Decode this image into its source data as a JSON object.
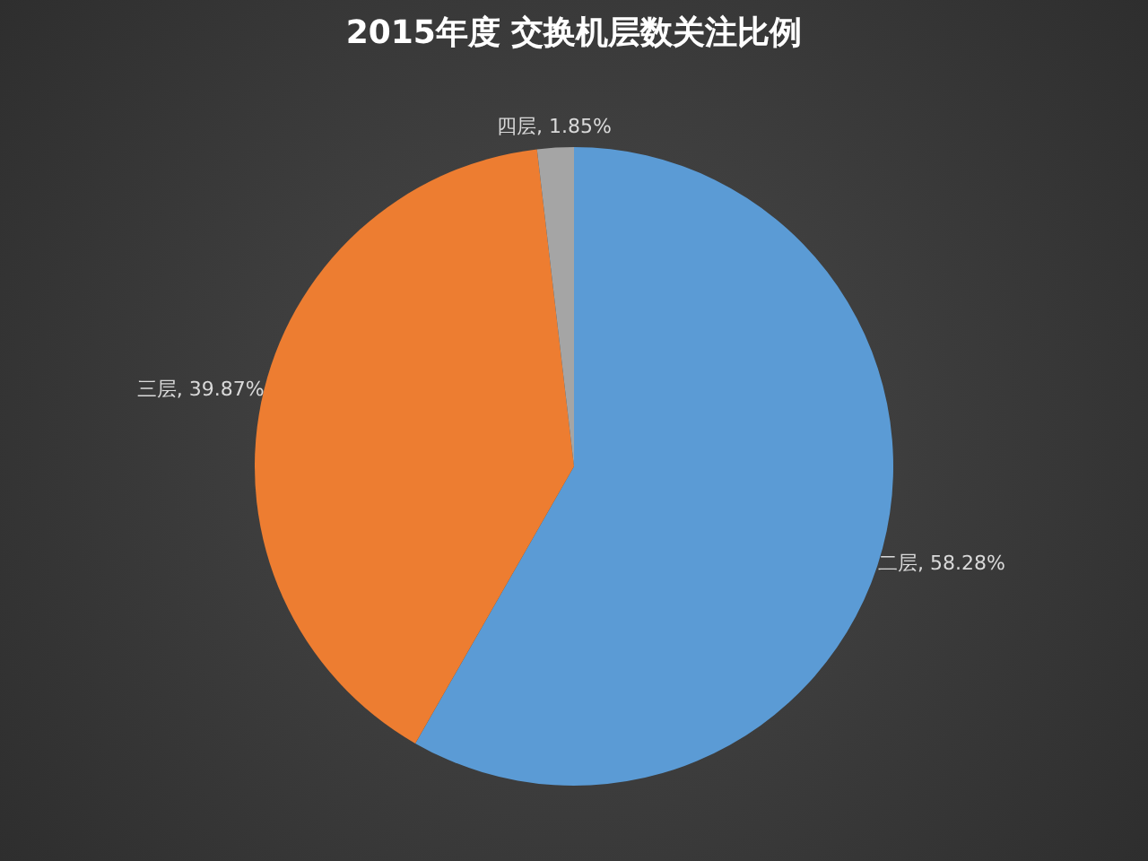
{
  "chart_data": {
    "type": "pie",
    "title": "2015年度 交换机层数关注比例",
    "categories": [
      "二层",
      "三层",
      "四层"
    ],
    "values": [
      58.28,
      39.87,
      1.85
    ],
    "colors": [
      "#5b9bd5",
      "#ed7d31",
      "#a5a5a5"
    ],
    "value_labels": [
      "58.28%",
      "39.87%",
      "1.85%"
    ],
    "legend": false
  }
}
